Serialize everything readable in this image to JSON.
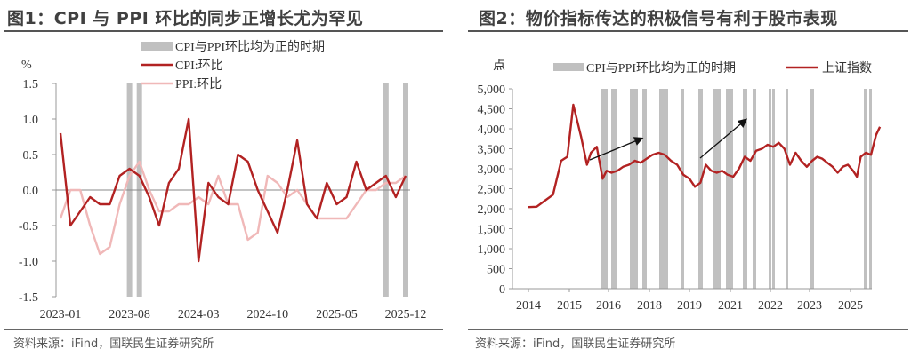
{
  "chart_data": [
    {
      "type": "line",
      "title": "图1：CPI 与 PPI 环比的同步正增长尤为罕见",
      "ylabel": "%",
      "xlabel": "",
      "ylim": [
        -1.5,
        1.5
      ],
      "yticks": [
        "1.5",
        "1.0",
        "0.5",
        "0.0",
        "-0.5",
        "-1.0",
        "-1.5"
      ],
      "xticks": [
        "2023-01",
        "2023-08",
        "2024-03",
        "2024-10",
        "2025-05",
        "2025-12"
      ],
      "legend": [
        "CPI与PPI环比均为正的时期",
        "CPI:环比",
        "PPI:环比"
      ],
      "legend_position": "top",
      "grid": false,
      "x": [
        "2023-01",
        "2023-02",
        "2023-03",
        "2023-04",
        "2023-05",
        "2023-06",
        "2023-07",
        "2023-08",
        "2023-09",
        "2023-10",
        "2023-11",
        "2023-12",
        "2024-01",
        "2024-02",
        "2024-03",
        "2024-04",
        "2024-05",
        "2024-06",
        "2024-07",
        "2024-08",
        "2024-09",
        "2024-10",
        "2024-11",
        "2024-12",
        "2025-01",
        "2025-02",
        "2025-03",
        "2025-04",
        "2025-05",
        "2025-06",
        "2025-07",
        "2025-08",
        "2025-09",
        "2025-10",
        "2025-11",
        "2025-12"
      ],
      "series": [
        {
          "name": "CPI:环比",
          "color": "#b22222",
          "values": [
            0.8,
            -0.5,
            -0.3,
            -0.1,
            -0.2,
            -0.2,
            0.2,
            0.3,
            0.2,
            -0.1,
            -0.5,
            0.1,
            0.3,
            1.0,
            -1.0,
            0.1,
            -0.1,
            -0.2,
            0.5,
            0.4,
            0.0,
            -0.3,
            -0.6,
            0.0,
            0.7,
            -0.2,
            -0.4,
            0.1,
            -0.2,
            -0.1,
            0.4,
            0.0,
            0.1,
            0.2,
            -0.1,
            0.2
          ]
        },
        {
          "name": "PPI:环比",
          "color": "#f0b8b8",
          "values": [
            -0.4,
            0.0,
            0.0,
            -0.5,
            -0.9,
            -0.8,
            -0.2,
            0.2,
            0.4,
            0.0,
            -0.3,
            -0.3,
            -0.2,
            -0.2,
            -0.1,
            -0.2,
            0.2,
            -0.2,
            -0.2,
            -0.7,
            -0.6,
            0.2,
            0.1,
            -0.1,
            0.0,
            -0.2,
            -0.4,
            -0.4,
            -0.4,
            -0.4,
            -0.2,
            0.0,
            0.0,
            0.1,
            0.1,
            0.2
          ]
        }
      ],
      "shaded_periods": [
        "2023-08",
        "2023-09",
        "2025-10",
        "2025-12"
      ]
    },
    {
      "type": "line",
      "title": "图2：物价指标传达的积极信号有利于股市表现",
      "ylabel": "点",
      "xlabel": "",
      "ylim": [
        0,
        5000
      ],
      "yticks": [
        "5,000",
        "4,500",
        "4,000",
        "3,500",
        "3,000",
        "2,500",
        "2,000",
        "1,500",
        "1,000",
        "500",
        "0"
      ],
      "xticks": [
        "2014",
        "2015",
        "2016",
        "2018",
        "2019",
        "2021",
        "2022",
        "2023",
        "2025"
      ],
      "legend": [
        "CPI与PPI环比均为正的时期",
        "上证指数"
      ],
      "legend_position": "top",
      "grid": false,
      "series": [
        {
          "name": "上证指数",
          "color": "#b22222",
          "x": [
            2014.0,
            2014.2,
            2014.4,
            2014.6,
            2014.8,
            2014.95,
            2015.1,
            2015.3,
            2015.45,
            2015.55,
            2015.7,
            2015.85,
            2015.95,
            2016.1,
            2016.3,
            2016.5,
            2016.7,
            2016.9,
            2017.1,
            2017.3,
            2017.5,
            2017.7,
            2017.9,
            2018.1,
            2018.3,
            2018.5,
            2018.7,
            2018.9,
            2019.1,
            2019.3,
            2019.5,
            2019.7,
            2019.9,
            2020.1,
            2020.3,
            2020.5,
            2020.7,
            2020.9,
            2021.1,
            2021.3,
            2021.5,
            2021.7,
            2021.9,
            2022.1,
            2022.3,
            2022.5,
            2022.7,
            2022.9,
            2023.1,
            2023.3,
            2023.5,
            2023.7,
            2023.9,
            2024.1,
            2024.3,
            2024.5,
            2024.7,
            2024.85,
            2025.0,
            2025.2,
            2025.4,
            2025.6,
            2025.75
          ],
          "values": [
            2040,
            2050,
            2200,
            2350,
            3200,
            3300,
            4600,
            3800,
            3100,
            3400,
            3550,
            2750,
            2950,
            2900,
            2950,
            3050,
            3100,
            3200,
            3150,
            3250,
            3350,
            3400,
            3350,
            3200,
            3100,
            2850,
            2750,
            2550,
            2650,
            3100,
            2950,
            2900,
            2950,
            2850,
            2800,
            3000,
            3300,
            3200,
            3450,
            3500,
            3600,
            3550,
            3650,
            3500,
            3100,
            3400,
            3200,
            3050,
            3200,
            3300,
            3250,
            3150,
            3050,
            2900,
            3050,
            3100,
            2950,
            2800,
            3300,
            3400,
            3350,
            3850,
            4050
          ]
        }
      ],
      "shaded_periods": [
        "2015.8",
        "2016.1",
        "2016.8",
        "2017.2",
        "2017.6",
        "2018.6",
        "2018.9",
        "2019.4",
        "2019.5",
        "2020.4",
        "2020.7",
        "2021.2",
        "2021.4",
        "2021.6",
        "2021.75",
        "2022.1",
        "2022.7",
        "2025.3",
        "2025.5"
      ],
      "annotations": [
        "arrow 2015.7→2016.7 (up-trend)",
        "arrow 2019.6→2021.4 (up-trend)"
      ]
    }
  ],
  "panels": {
    "left": {
      "title": "图1：CPI 与 PPI 环比的同步正增长尤为罕见",
      "y_unit": "%",
      "legend": {
        "shade": "CPI与PPI环比均为正的时期",
        "cpi": "CPI:环比",
        "ppi": "PPI:环比"
      },
      "source": "资料来源：iFind，国联民生证券研究所"
    },
    "right": {
      "title": "图2：物价指标传达的积极信号有利于股市表现",
      "y_unit": "点",
      "legend": {
        "shade": "CPI与PPI环比均为正的时期",
        "index": "上证指数"
      },
      "source": "资料来源：iFind，国联民生证券研究所"
    }
  },
  "colors": {
    "cpi": "#b22222",
    "ppi": "#f0b8b8",
    "shade": "#c0c0c0",
    "axis": "#999999",
    "title": "#404040"
  }
}
